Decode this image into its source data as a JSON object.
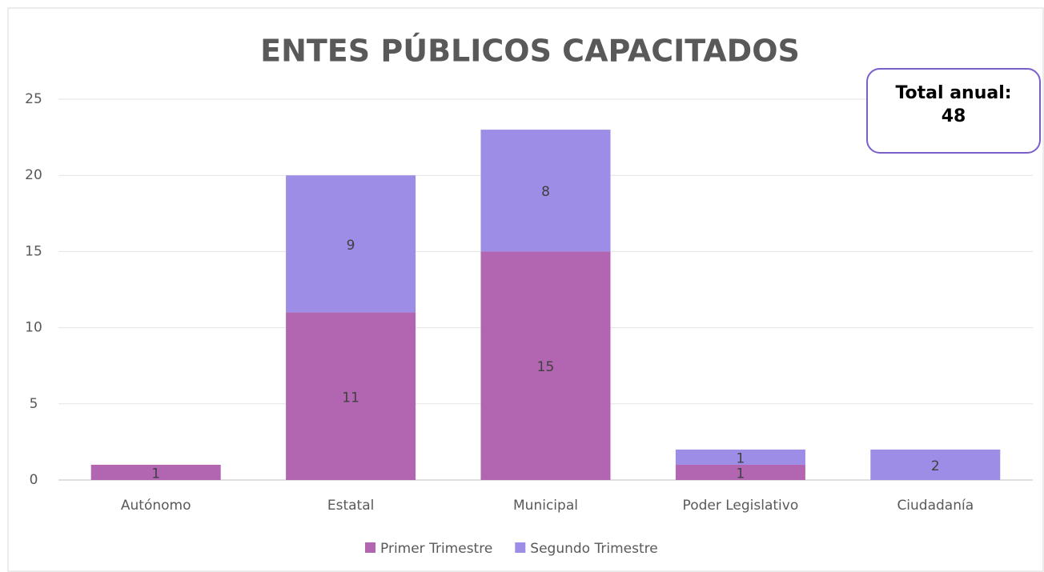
{
  "chart_data": {
    "type": "stacked_bar",
    "title": "ENTES PÚBLICOS CAPACITADOS",
    "categories": [
      "Autónomo",
      "Estatal",
      "Municipal",
      "Poder Legislativo",
      "Ciudadanía"
    ],
    "series": [
      {
        "name": "Primer Trimestre",
        "color": "#b266b2",
        "values": [
          1,
          11,
          15,
          1,
          null
        ]
      },
      {
        "name": "Segundo Trimestre",
        "color": "#9d8de6",
        "values": [
          null,
          9,
          8,
          1,
          2
        ]
      }
    ],
    "ylim": [
      0,
      25
    ],
    "yticks": [
      0,
      5,
      10,
      15,
      20,
      25
    ],
    "grid": true,
    "legend": "bottom",
    "annotation": [
      "Total anual:",
      "48"
    ]
  }
}
